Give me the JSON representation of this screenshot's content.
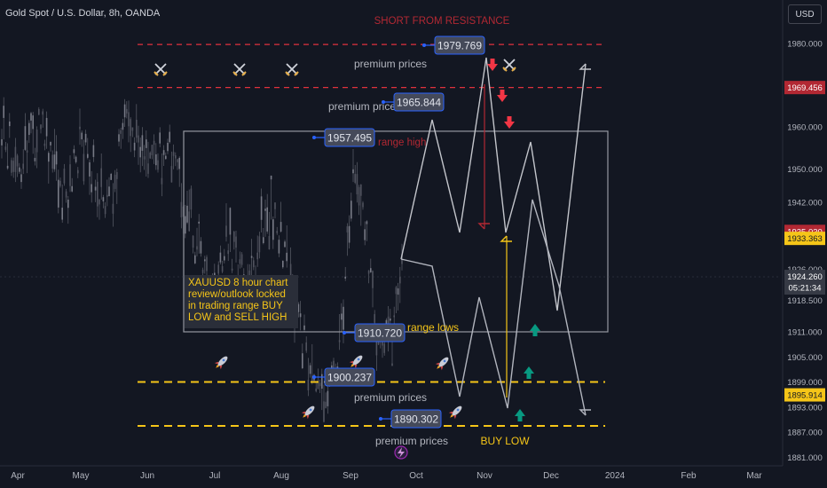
{
  "header": {
    "symbol": "Gold Spot / U.S. Dollar, 8h, OANDA",
    "currency_button": "USD"
  },
  "colors": {
    "background": "#131722",
    "red_dashed": "#e0313d",
    "yellow_dashed": "#f5c518",
    "arrow_down": "#f23645",
    "arrow_up": "#089981",
    "range_box": "#9598a1",
    "zigzag": "#d1d4dc"
  },
  "annotations": {
    "title": "SHORT FROM RESISTANCE",
    "note": "XAUUSD 8 hour chart review/outlook locked in trading range BUY LOW and SELL HIGH",
    "range_high": "range high",
    "range_lows": "range lows",
    "buy_low": "BUY LOW",
    "premium_prices": [
      "premium prices",
      "premium price",
      "premium prices",
      "premium prices"
    ]
  },
  "chart_data": {
    "type": "line",
    "title": "Gold Spot / U.S. Dollar, 8h, OANDA",
    "x_ticks": [
      "Apr",
      "May",
      "Jun",
      "Jul",
      "Aug",
      "Sep",
      "Oct",
      "Nov",
      "Dec",
      "2024",
      "Feb",
      "Mar"
    ],
    "y_ticks": [
      1980.0,
      1969.456,
      1960.0,
      1950.0,
      1942.0,
      1935.03,
      1933.363,
      1926.0,
      1924.26,
      1918.5,
      1911.0,
      1905.0,
      1899.0,
      1895.914,
      1893.0,
      1887.0,
      1881.0
    ],
    "y_axis_labels": [
      "1980.000",
      "1969.456",
      "1960.000",
      "1950.000",
      "1942.000",
      "1935.030",
      "1933.363",
      "1926.000",
      "1924.260",
      "1918.500",
      "1911.000",
      "1905.000",
      "1899.000",
      "1895.914",
      "1893.000",
      "1887.000",
      "1881.000"
    ],
    "highlighted_labels": {
      "1969.456": "#b22833",
      "1935.030": "#b22833",
      "1933.363": "#f5c518",
      "1895.914": "#f5c518",
      "1924.260": "#363a45"
    },
    "current_price_countdown": "05:21:34",
    "ylim": [
      1878,
      1991
    ],
    "grid": false,
    "price_levels": [
      {
        "name": "red-resistance-1",
        "value": 1979.769
      },
      {
        "name": "red-resistance-2",
        "value": 1969.456
      },
      {
        "name": "yellow-support-1",
        "value": 1899.0
      },
      {
        "name": "yellow-support-2",
        "value": 1888.5
      }
    ],
    "price_badges": [
      1979.769,
      1965.844,
      1957.495,
      1910.72,
      1900.237,
      1890.302
    ],
    "range_box": {
      "high": 1959.0,
      "low": 1911.0,
      "from": "Jun",
      "to": "Dec"
    }
  }
}
